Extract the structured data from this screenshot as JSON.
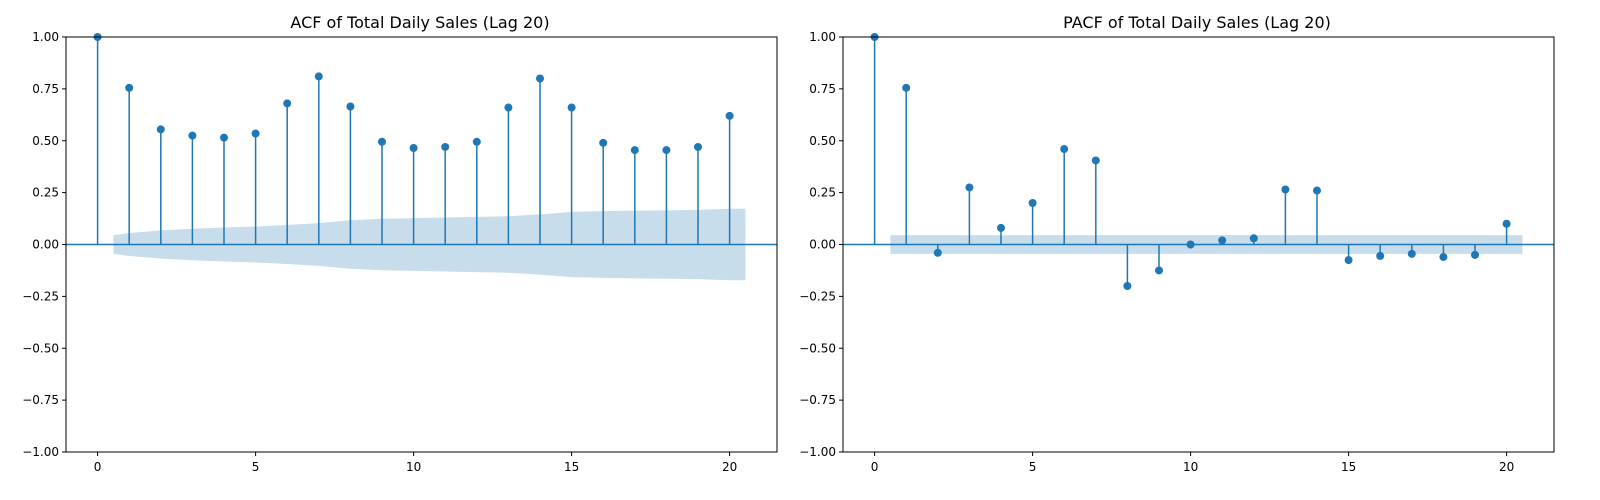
{
  "chart_data": [
    {
      "type": "stem",
      "title": "ACF of Total Daily Sales (Lag 20)",
      "xlabel": "",
      "ylabel": "",
      "xlim": [
        -1,
        21.5
      ],
      "ylim": [
        -1.0,
        1.0
      ],
      "x_ticks": [
        0,
        5,
        10,
        15,
        20
      ],
      "x_tick_labels": [
        "0",
        "5",
        "10",
        "15",
        "20"
      ],
      "y_ticks": [
        -1.0,
        -0.75,
        -0.5,
        -0.25,
        0.0,
        0.25,
        0.5,
        0.75,
        1.0
      ],
      "y_tick_labels": [
        "−1.00",
        "−0.75",
        "−0.50",
        "−0.25",
        "0.00",
        "0.25",
        "0.50",
        "0.75",
        "1.00"
      ],
      "grid": false,
      "colors": {
        "series": "#1f77b4",
        "band": "#1f77b4"
      },
      "lags": [
        0,
        1,
        2,
        3,
        4,
        5,
        6,
        7,
        8,
        9,
        10,
        11,
        12,
        13,
        14,
        15,
        16,
        17,
        18,
        19,
        20
      ],
      "values": [
        1.0,
        0.755,
        0.555,
        0.525,
        0.515,
        0.535,
        0.68,
        0.81,
        0.665,
        0.495,
        0.465,
        0.47,
        0.495,
        0.66,
        0.8,
        0.66,
        0.49,
        0.455,
        0.455,
        0.47,
        0.62
      ],
      "confidence_band": {
        "x": [
          0.5,
          1,
          2,
          3,
          4,
          5,
          6,
          7,
          8,
          9,
          10,
          11,
          12,
          13,
          14,
          15,
          16,
          17,
          18,
          19,
          20,
          20.5
        ],
        "upper": [
          0.045,
          0.055,
          0.068,
          0.076,
          0.082,
          0.087,
          0.094,
          0.103,
          0.117,
          0.124,
          0.127,
          0.13,
          0.133,
          0.136,
          0.145,
          0.157,
          0.161,
          0.163,
          0.165,
          0.167,
          0.172,
          0.172
        ]
      }
    },
    {
      "type": "stem",
      "title": "PACF of Total Daily Sales (Lag 20)",
      "xlabel": "",
      "ylabel": "",
      "xlim": [
        -1,
        21.5
      ],
      "ylim": [
        -1.0,
        1.0
      ],
      "x_ticks": [
        0,
        5,
        10,
        15,
        20
      ],
      "x_tick_labels": [
        "0",
        "5",
        "10",
        "15",
        "20"
      ],
      "y_ticks": [
        -1.0,
        -0.75,
        -0.5,
        -0.25,
        0.0,
        0.25,
        0.5,
        0.75,
        1.0
      ],
      "y_tick_labels": [
        "−1.00",
        "−0.75",
        "−0.50",
        "−0.25",
        "0.00",
        "0.25",
        "0.50",
        "0.75",
        "1.00"
      ],
      "grid": false,
      "colors": {
        "series": "#1f77b4",
        "band": "#1f77b4"
      },
      "lags": [
        0,
        1,
        2,
        3,
        4,
        5,
        6,
        7,
        8,
        9,
        10,
        11,
        12,
        13,
        14,
        15,
        16,
        17,
        18,
        19,
        20
      ],
      "values": [
        1.0,
        0.755,
        -0.04,
        0.275,
        0.08,
        0.2,
        0.46,
        0.405,
        -0.2,
        -0.125,
        0.0,
        0.02,
        0.03,
        0.265,
        0.26,
        -0.075,
        -0.055,
        -0.045,
        -0.06,
        -0.05,
        0.1
      ],
      "confidence_band": {
        "x": [
          0.5,
          20.5
        ],
        "upper": [
          0.045,
          0.045
        ]
      }
    }
  ]
}
